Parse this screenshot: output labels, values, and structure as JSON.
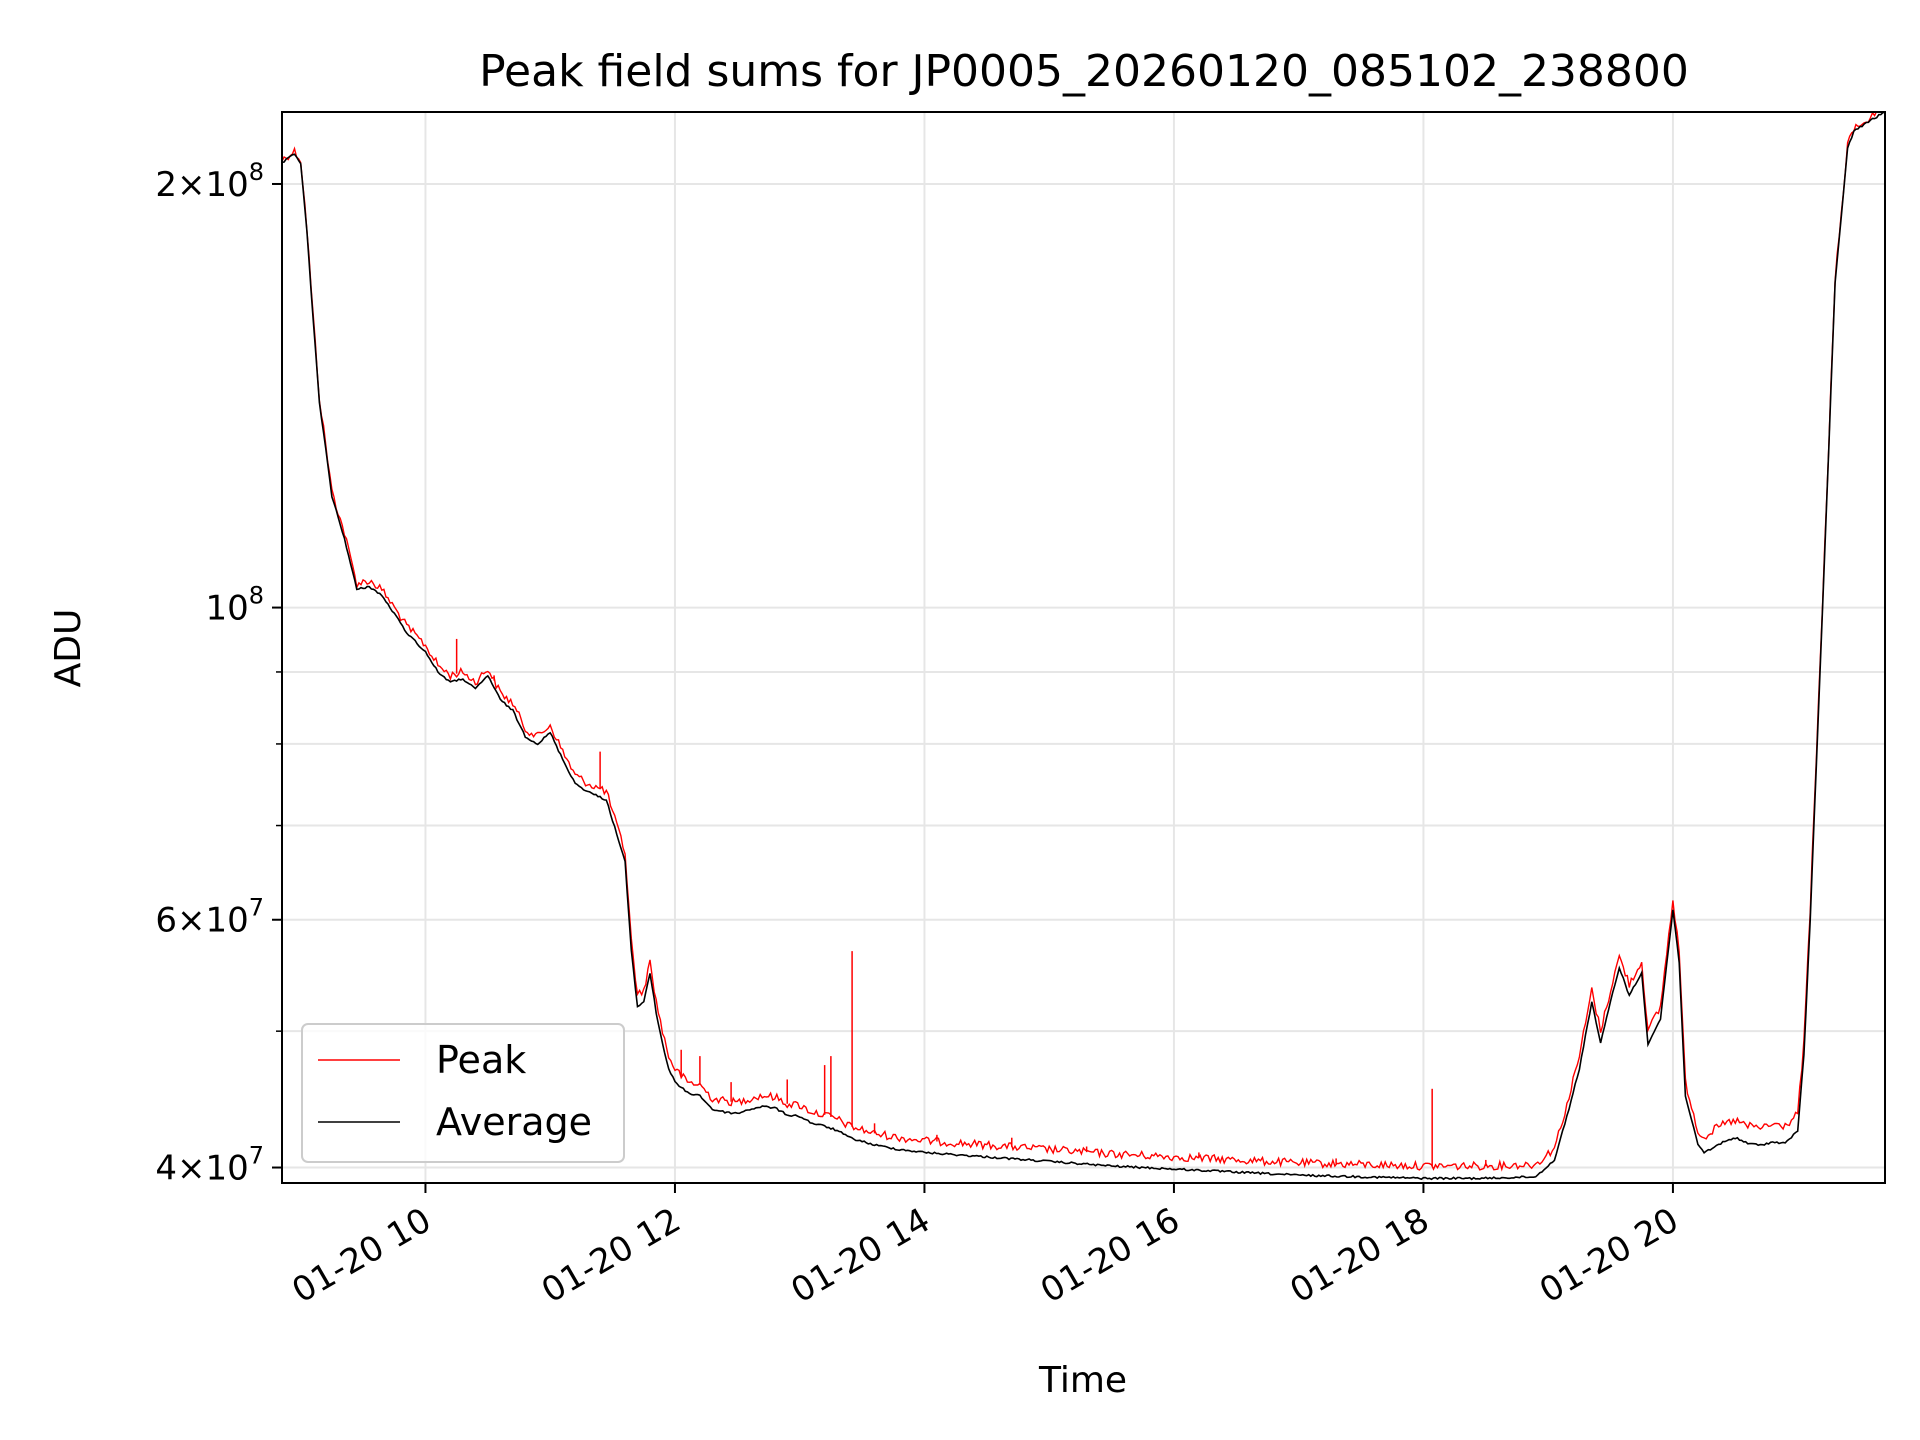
{
  "chart_data": {
    "type": "line",
    "title": "Peak field sums for JP0005_20260120_085102_238800",
    "xlabel": "Time",
    "ylabel": "ADU",
    "yscale": "log",
    "xlim": [
      8.85,
      21.7
    ],
    "ylim": [
      39000000,
      225000000
    ],
    "grid": true,
    "legend_position": "lower-left",
    "x_ticks": [
      {
        "value": 10,
        "label": "01-20 10"
      },
      {
        "value": 12,
        "label": "01-20 12"
      },
      {
        "value": 14,
        "label": "01-20 14"
      },
      {
        "value": 16,
        "label": "01-20 16"
      },
      {
        "value": 18,
        "label": "01-20 18"
      },
      {
        "value": 20,
        "label": "01-20 20"
      }
    ],
    "y_ticks": [
      {
        "value": 40000000,
        "mant": "4",
        "exp": "7"
      },
      {
        "value": 60000000,
        "mant": "6",
        "exp": "7"
      },
      {
        "value": 100000000,
        "mant": "",
        "exp": "8"
      },
      {
        "value": 200000000,
        "mant": "2",
        "exp": "8"
      }
    ],
    "y_minor_ticks": [
      50000000,
      70000000,
      80000000,
      90000000
    ],
    "colors": {
      "peak": "#ff0000",
      "average": "#000000",
      "grid": "#e6e6e6"
    },
    "series": [
      {
        "name": "Average",
        "color": "#000000",
        "x": [
          8.85,
          8.95,
          9.0,
          9.05,
          9.1,
          9.15,
          9.25,
          9.35,
          9.45,
          9.55,
          9.65,
          9.75,
          9.85,
          10.0,
          10.1,
          10.2,
          10.3,
          10.4,
          10.5,
          10.6,
          10.7,
          10.8,
          10.9,
          11.0,
          11.1,
          11.2,
          11.3,
          11.45,
          11.6,
          11.65,
          11.7,
          11.75,
          11.8,
          11.85,
          11.9,
          11.95,
          12.0,
          12.1,
          12.2,
          12.3,
          12.4,
          12.5,
          12.6,
          12.7,
          12.8,
          12.9,
          13.0,
          13.1,
          13.2,
          13.3,
          13.4,
          13.6,
          13.8,
          14.0,
          14.5,
          15.0,
          15.5,
          16.0,
          16.5,
          17.0,
          17.5,
          18.0,
          18.5,
          18.9,
          19.05,
          19.15,
          19.25,
          19.35,
          19.42,
          19.5,
          19.57,
          19.65,
          19.75,
          19.8,
          19.9,
          20.0,
          20.05,
          20.1,
          20.2,
          20.25,
          20.3,
          20.4,
          20.5,
          20.6,
          20.7,
          20.8,
          20.9,
          21.0,
          21.05,
          21.1,
          21.2,
          21.3,
          21.4,
          21.45,
          21.55,
          21.7
        ],
        "y": [
          207000000,
          210000000,
          207000000,
          185000000,
          160000000,
          140000000,
          120000000,
          112000000,
          103000000,
          103500000,
          102000000,
          99000000,
          96000000,
          93000000,
          90000000,
          88500000,
          89000000,
          87500000,
          89500000,
          86000000,
          84500000,
          81000000,
          80000000,
          81500000,
          78000000,
          75000000,
          74000000,
          73000000,
          66000000,
          57000000,
          52000000,
          52500000,
          55000000,
          51500000,
          49000000,
          47000000,
          46000000,
          45200000,
          45000000,
          44000000,
          43800000,
          43700000,
          44000000,
          44200000,
          44100000,
          43600000,
          43500000,
          43000000,
          42800000,
          42500000,
          42000000,
          41500000,
          41200000,
          41000000,
          40700000,
          40400000,
          40100000,
          39900000,
          39700000,
          39500000,
          39400000,
          39300000,
          39300000,
          39400000,
          40500000,
          43500000,
          47000000,
          52500000,
          49000000,
          52500000,
          55500000,
          53000000,
          55000000,
          49000000,
          51000000,
          61000000,
          56000000,
          45000000,
          41500000,
          41000000,
          41200000,
          41700000,
          42000000,
          41600000,
          41500000,
          41700000,
          41600000,
          42500000,
          48000000,
          60000000,
          100000000,
          170000000,
          212000000,
          218000000,
          221000000,
          225000000
        ]
      },
      {
        "name": "Peak",
        "color": "#ff0000",
        "x": [
          8.85,
          8.95,
          9.0,
          9.05,
          9.1,
          9.15,
          9.25,
          9.35,
          9.45,
          9.55,
          9.65,
          9.75,
          9.85,
          10.0,
          10.1,
          10.2,
          10.3,
          10.4,
          10.5,
          10.6,
          10.7,
          10.8,
          10.9,
          11.0,
          11.1,
          11.2,
          11.3,
          11.45,
          11.6,
          11.65,
          11.7,
          11.75,
          11.8,
          11.85,
          11.9,
          11.95,
          12.0,
          12.1,
          12.2,
          12.3,
          12.4,
          12.5,
          12.6,
          12.7,
          12.8,
          12.9,
          13.0,
          13.1,
          13.2,
          13.3,
          13.4,
          13.6,
          13.8,
          14.0,
          14.5,
          15.0,
          15.5,
          16.0,
          16.5,
          17.0,
          17.5,
          18.0,
          18.5,
          18.9,
          19.05,
          19.15,
          19.25,
          19.35,
          19.42,
          19.5,
          19.57,
          19.65,
          19.75,
          19.8,
          19.9,
          20.0,
          20.05,
          20.1,
          20.2,
          20.25,
          20.3,
          20.4,
          20.5,
          20.6,
          20.7,
          20.8,
          20.9,
          21.0,
          21.05,
          21.1,
          21.2,
          21.3,
          21.4,
          21.45,
          21.55,
          21.7
        ],
        "y": [
          208000000,
          211000000,
          208000000,
          186000000,
          161000000,
          141000000,
          121000000,
          113000000,
          104000000,
          104500000,
          103000000,
          100000000,
          97000000,
          94000000,
          91000000,
          89500000,
          90000000,
          88500000,
          90500000,
          87000000,
          85500000,
          82000000,
          81000000,
          82500000,
          79000000,
          76000000,
          75000000,
          74000000,
          67000000,
          58000000,
          53000000,
          53500000,
          56000000,
          52500000,
          50000000,
          48000000,
          47000000,
          46000000,
          45800000,
          44800000,
          44600000,
          44500000,
          44800000,
          45000000,
          44900000,
          44400000,
          44300000,
          43800000,
          43600000,
          43300000,
          42800000,
          42300000,
          42000000,
          41800000,
          41500000,
          41200000,
          40900000,
          40700000,
          40500000,
          40300000,
          40200000,
          40100000,
          40100000,
          40200000,
          41300000,
          44300000,
          48000000,
          53500000,
          50000000,
          53500000,
          56500000,
          54000000,
          56000000,
          50000000,
          52000000,
          62000000,
          57000000,
          46000000,
          42500000,
          42000000,
          42400000,
          42900000,
          43200000,
          42800000,
          42700000,
          42900000,
          42800000,
          43700000,
          49000000,
          61000000,
          101000000,
          171000000,
          213000000,
          219000000,
          222000000,
          226000000
        ]
      }
    ],
    "peak_spikes": [
      {
        "x": 10.25,
        "y": 95000000
      },
      {
        "x": 10.55,
        "y": 89500000
      },
      {
        "x": 11.4,
        "y": 79000000
      },
      {
        "x": 12.05,
        "y": 48500000
      },
      {
        "x": 12.2,
        "y": 48000000
      },
      {
        "x": 12.45,
        "y": 46000000
      },
      {
        "x": 12.9,
        "y": 46200000
      },
      {
        "x": 13.2,
        "y": 47300000
      },
      {
        "x": 13.25,
        "y": 48000000
      },
      {
        "x": 13.42,
        "y": 57000000
      },
      {
        "x": 13.6,
        "y": 43000000
      },
      {
        "x": 14.1,
        "y": 42200000
      },
      {
        "x": 14.7,
        "y": 42000000
      },
      {
        "x": 15.3,
        "y": 41400000
      },
      {
        "x": 16.2,
        "y": 41000000
      },
      {
        "x": 17.3,
        "y": 40600000
      },
      {
        "x": 18.07,
        "y": 45500000
      },
      {
        "x": 18.5,
        "y": 40500000
      }
    ],
    "legend": [
      {
        "label": "Peak",
        "color": "#ff0000"
      },
      {
        "label": "Average",
        "color": "#000000"
      }
    ]
  }
}
